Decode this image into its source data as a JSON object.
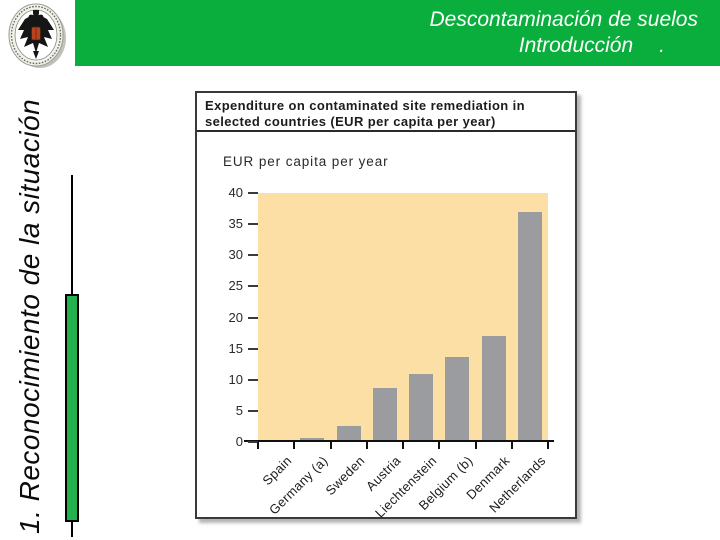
{
  "header": {
    "title": "Descontaminación de suelos",
    "subtitle": "Introducción",
    "subtitle_dot": ".",
    "bg_color": "#09AE3C",
    "text_color": "#ffffff"
  },
  "logo": {
    "name": "university-coat-of-arms-seal"
  },
  "sidebar": {
    "section_label": "1. Reconocimiento de la situación",
    "accent_color": "#22B14C"
  },
  "panel": {
    "title_line1": "Expenditure on contaminated site remediation in",
    "title_line2": "selected countries (EUR per capita per year)",
    "axis_title": "EUR per capita per year"
  },
  "chart_data": {
    "type": "bar",
    "title": "Expenditure on contaminated site remediation in selected countries (EUR per capita per year)",
    "ylabel": "EUR per capita per year",
    "xlabel": "",
    "categories": [
      "Spain",
      "Germany (a)",
      "Sweden",
      "Austria",
      "Liechtenstein",
      "Belgium (b)",
      "Denmark",
      "Netherlands"
    ],
    "values": [
      0.4,
      0.6,
      2.6,
      8.6,
      10.9,
      13.6,
      17.1,
      36.9
    ],
    "yticks": [
      0,
      5,
      10,
      15,
      20,
      25,
      30,
      35,
      40
    ],
    "ylim": [
      0,
      40
    ],
    "grid": false,
    "legend": "none",
    "plot_bg": "#FBDFA4",
    "bar_color": "#9A9CA0"
  }
}
